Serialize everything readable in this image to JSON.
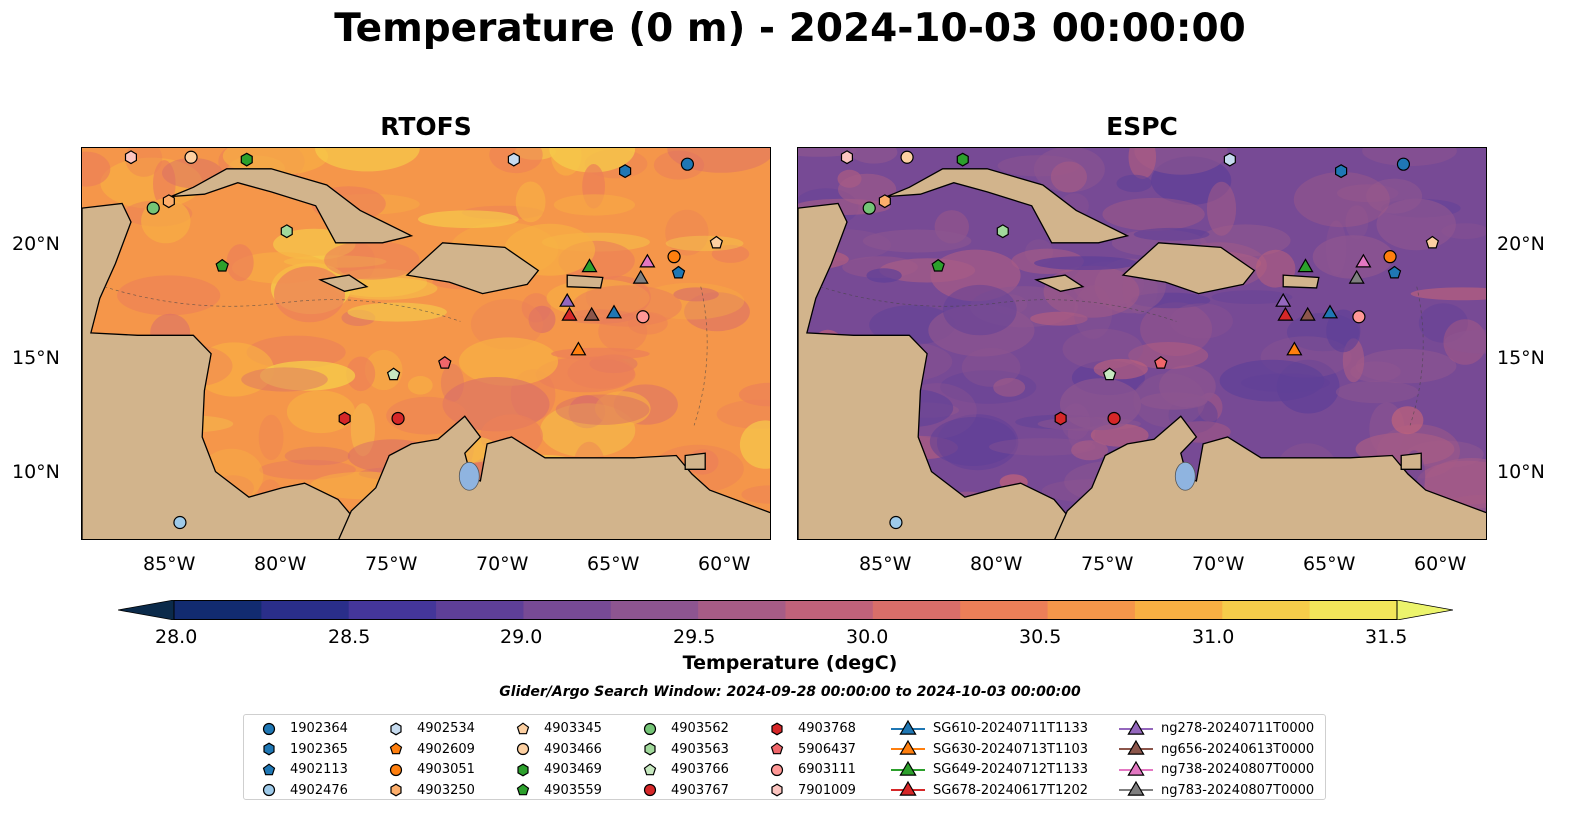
{
  "title": "Temperature (0 m) - 2024-10-03 00:00:00",
  "panels": [
    {
      "title": "RTOFS",
      "palette": "warm"
    },
    {
      "title": "ESPC",
      "palette": "cool"
    }
  ],
  "lon_ticks": [
    "85°W",
    "80°W",
    "75°W",
    "70°W",
    "65°W",
    "60°W"
  ],
  "lat_ticks": [
    "20°N",
    "15°N",
    "10°N"
  ],
  "colorbar": {
    "label": "Temperature (degC)",
    "ticks": [
      "28.0",
      "28.5",
      "29.0",
      "29.5",
      "30.0",
      "30.5",
      "31.0",
      "31.5"
    ],
    "colors": [
      "#0b2a4a",
      "#122b70",
      "#2a2e8a",
      "#44369a",
      "#5e3f98",
      "#774a95",
      "#8d5590",
      "#a65c86",
      "#c0627a",
      "#d96e69",
      "#ec7f58",
      "#f5964a",
      "#f8b043",
      "#f6cd4a",
      "#f2e65a",
      "#ecf46c"
    ]
  },
  "search_window": "Glider/Argo Search Window: 2024-09-28 00:00:00 to 2024-10-03 00:00:00",
  "legend": [
    {
      "label": "1902364",
      "marker": "circle",
      "color": "#1f77b4"
    },
    {
      "label": "1902365",
      "marker": "hexagon",
      "color": "#1f77b4"
    },
    {
      "label": "4902113",
      "marker": "pentagon",
      "color": "#1f77b4"
    },
    {
      "label": "4902476",
      "marker": "circle",
      "color": "#9ecae9"
    },
    {
      "label": "4902534",
      "marker": "hexagon",
      "color": "#c6dbef"
    },
    {
      "label": "4902609",
      "marker": "pentagon",
      "color": "#ff7f0e"
    },
    {
      "label": "4903051",
      "marker": "circle",
      "color": "#ff7f0e"
    },
    {
      "label": "4903250",
      "marker": "hexagon",
      "color": "#fdae6b"
    },
    {
      "label": "4903345",
      "marker": "pentagon",
      "color": "#fdd0a2"
    },
    {
      "label": "4903466",
      "marker": "circle",
      "color": "#fdd0a2"
    },
    {
      "label": "4903469",
      "marker": "hexagon",
      "color": "#2ca02c"
    },
    {
      "label": "4903559",
      "marker": "pentagon",
      "color": "#2ca02c"
    },
    {
      "label": "4903562",
      "marker": "circle",
      "color": "#74c476"
    },
    {
      "label": "4903563",
      "marker": "hexagon",
      "color": "#a1d99b"
    },
    {
      "label": "4903766",
      "marker": "pentagon",
      "color": "#c7e9c0"
    },
    {
      "label": "4903767",
      "marker": "circle",
      "color": "#d62728"
    },
    {
      "label": "4903768",
      "marker": "hexagon",
      "color": "#d62728"
    },
    {
      "label": "5906437",
      "marker": "pentagon",
      "color": "#f0666a"
    },
    {
      "label": "6903111",
      "marker": "circle",
      "color": "#ff9896"
    },
    {
      "label": "7901009",
      "marker": "hexagon",
      "color": "#fcc5c0"
    },
    {
      "label": "SG610-20240711T1133",
      "marker": "triangle",
      "color": "#1f77b4"
    },
    {
      "label": "SG630-20240713T1103",
      "marker": "triangle",
      "color": "#ff7f0e"
    },
    {
      "label": "SG649-20240712T1133",
      "marker": "triangle",
      "color": "#2ca02c"
    },
    {
      "label": "SG678-20240617T1202",
      "marker": "triangle",
      "color": "#d62728"
    },
    {
      "label": "ng278-20240711T0000",
      "marker": "triangle",
      "color": "#9467bd"
    },
    {
      "label": "ng656-20240613T0000",
      "marker": "triangle",
      "color": "#8c564b"
    },
    {
      "label": "ng738-20240807T0000",
      "marker": "triangle",
      "color": "#e377c2"
    },
    {
      "label": "ng783-20240807T0000",
      "marker": "triangle",
      "color": "#7f7f7f"
    }
  ],
  "chart_data": {
    "type": "scatter",
    "map": true,
    "title": "Temperature (0 m) - 2024-10-03 00:00:00",
    "panels": [
      "RTOFS",
      "ESPC"
    ],
    "xlim": [
      -89,
      -58
    ],
    "ylim": [
      7,
      24
    ],
    "points": [
      {
        "id": "7901009",
        "lon": -86.8,
        "lat": 23.6
      },
      {
        "id": "4903466",
        "lon": -84.1,
        "lat": 23.6
      },
      {
        "id": "4903469",
        "lon": -81.6,
        "lat": 23.5
      },
      {
        "id": "4902534",
        "lon": -69.6,
        "lat": 23.5
      },
      {
        "id": "1902365",
        "lon": -64.6,
        "lat": 23.0
      },
      {
        "id": "1902364",
        "lon": -61.8,
        "lat": 23.3
      },
      {
        "id": "4903562",
        "lon": -85.8,
        "lat": 21.4
      },
      {
        "id": "4903250",
        "lon": -85.1,
        "lat": 21.7
      },
      {
        "id": "4903563",
        "lon": -79.8,
        "lat": 20.4
      },
      {
        "id": "4903345",
        "lon": -60.5,
        "lat": 19.9
      },
      {
        "id": "4903051",
        "lon": -62.4,
        "lat": 19.3
      },
      {
        "id": "4902113",
        "lon": -62.2,
        "lat": 18.6
      },
      {
        "id": "4903559",
        "lon": -82.7,
        "lat": 18.9
      },
      {
        "id": "6903111",
        "lon": -63.8,
        "lat": 16.7
      },
      {
        "id": "4903766",
        "lon": -75.0,
        "lat": 14.2
      },
      {
        "id": "5906437",
        "lon": -72.7,
        "lat": 14.7
      },
      {
        "id": "4903768",
        "lon": -77.2,
        "lat": 12.3
      },
      {
        "id": "4903767",
        "lon": -74.8,
        "lat": 12.3
      },
      {
        "id": "4902476",
        "lon": -84.6,
        "lat": 7.8
      },
      {
        "id": "SG649-20240712T1133",
        "lon": -66.2,
        "lat": 18.9
      },
      {
        "id": "ng738-20240807T0000",
        "lon": -63.6,
        "lat": 19.1
      },
      {
        "id": "ng783-20240807T0000",
        "lon": -63.9,
        "lat": 18.4
      },
      {
        "id": "ng278-20240711T0000",
        "lon": -67.2,
        "lat": 17.4
      },
      {
        "id": "SG678-20240617T1202",
        "lon": -67.1,
        "lat": 16.8
      },
      {
        "id": "ng656-20240613T0000",
        "lon": -66.1,
        "lat": 16.8
      },
      {
        "id": "SG610-20240711T1133",
        "lon": -65.1,
        "lat": 16.9
      },
      {
        "id": "SG630-20240713T1103",
        "lon": -66.7,
        "lat": 15.3
      }
    ],
    "colorbar_range": [
      28.0,
      31.5
    ],
    "colorbar_label": "Temperature (degC)"
  }
}
